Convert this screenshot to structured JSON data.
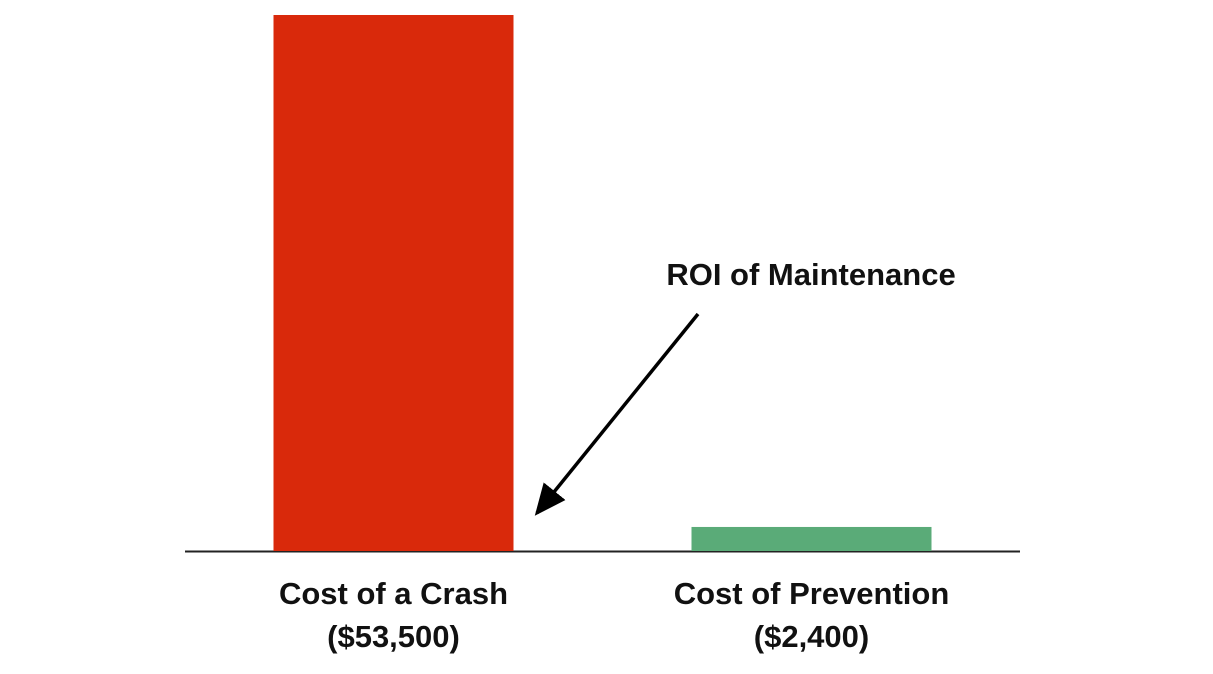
{
  "chart_data": {
    "type": "bar",
    "categories": [
      "Cost of a Crash",
      "Cost of Prevention"
    ],
    "values": [
      53500,
      2400
    ],
    "value_labels": [
      "($53,500)",
      "($2,400)"
    ],
    "colors": [
      "#d9290b",
      "#5aab78"
    ],
    "annotation": "ROI of Maintenance"
  }
}
